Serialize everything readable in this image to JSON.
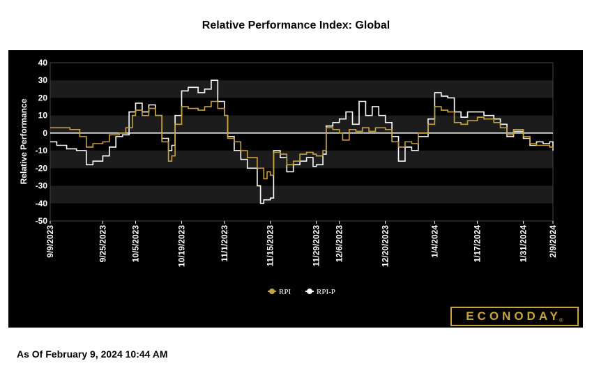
{
  "title": "Relative Performance Index: Global",
  "footer": {
    "as_of": "As Of February 9, 2024 10:44 AM"
  },
  "logo": {
    "text": "ECONODAY",
    "mark": "®"
  },
  "colors": {
    "background": "#000000",
    "band": "#1c1c1c",
    "rpi": "#c9a33d",
    "rpi_p": "#ffffff",
    "zero_line": "#ffffff"
  },
  "chart_data": {
    "type": "line",
    "title": "Relative Performance Index: Global",
    "xlabel": "",
    "ylabel": "Relative Performance",
    "ylim": [
      -50,
      40
    ],
    "yticks": [
      40,
      30,
      20,
      10,
      0,
      -10,
      -20,
      -30,
      -40,
      -50
    ],
    "xlim": [
      "2023-09-09",
      "2024-02-09"
    ],
    "xticks": [
      "9/9/2023",
      "9/25/2023",
      "10/5/2023",
      "10/19/2023",
      "11/1/2023",
      "11/15/2023",
      "11/29/2023",
      "12/6/2023",
      "12/20/2023",
      "1/4/2024",
      "1/17/2024",
      "1/31/2024",
      "2/9/2024"
    ],
    "xtick_dates": [
      "2023-09-09",
      "2023-09-25",
      "2023-10-05",
      "2023-10-19",
      "2023-11-01",
      "2023-11-15",
      "2023-11-29",
      "2023-12-06",
      "2023-12-20",
      "2024-01-04",
      "2024-01-17",
      "2024-01-31",
      "2024-02-09"
    ],
    "alternating_bands": true,
    "legend_position": "bottom-center",
    "series": [
      {
        "name": "RPI",
        "color": "#c9a33d",
        "points": [
          [
            "2023-09-09",
            3
          ],
          [
            "2023-09-12",
            3
          ],
          [
            "2023-09-15",
            2
          ],
          [
            "2023-09-18",
            -2
          ],
          [
            "2023-09-20",
            -8
          ],
          [
            "2023-09-22",
            -6
          ],
          [
            "2023-09-25",
            -5
          ],
          [
            "2023-09-27",
            -1
          ],
          [
            "2023-09-30",
            0
          ],
          [
            "2023-10-02",
            3
          ],
          [
            "2023-10-04",
            10
          ],
          [
            "2023-10-05",
            13
          ],
          [
            "2023-10-07",
            10
          ],
          [
            "2023-10-09",
            14
          ],
          [
            "2023-10-11",
            10
          ],
          [
            "2023-10-13",
            -5
          ],
          [
            "2023-10-15",
            -16
          ],
          [
            "2023-10-16",
            -13
          ],
          [
            "2023-10-17",
            5
          ],
          [
            "2023-10-19",
            15
          ],
          [
            "2023-10-21",
            14
          ],
          [
            "2023-10-24",
            13
          ],
          [
            "2023-10-26",
            15
          ],
          [
            "2023-10-28",
            18
          ],
          [
            "2023-10-30",
            14
          ],
          [
            "2023-11-01",
            10
          ],
          [
            "2023-11-02",
            -3
          ],
          [
            "2023-11-04",
            -5
          ],
          [
            "2023-11-06",
            -10
          ],
          [
            "2023-11-08",
            -14
          ],
          [
            "2023-11-11",
            -20
          ],
          [
            "2023-11-13",
            -26
          ],
          [
            "2023-11-14",
            -22
          ],
          [
            "2023-11-15",
            -24
          ],
          [
            "2023-11-16",
            -11
          ],
          [
            "2023-11-18",
            -12
          ],
          [
            "2023-11-20",
            -18
          ],
          [
            "2023-11-22",
            -16
          ],
          [
            "2023-11-24",
            -12
          ],
          [
            "2023-11-26",
            -11
          ],
          [
            "2023-11-28",
            -12
          ],
          [
            "2023-11-29",
            -13
          ],
          [
            "2023-12-01",
            -10
          ],
          [
            "2023-12-02",
            3
          ],
          [
            "2023-12-04",
            2
          ],
          [
            "2023-12-06",
            0
          ],
          [
            "2023-12-07",
            -4
          ],
          [
            "2023-12-09",
            2
          ],
          [
            "2023-12-11",
            1
          ],
          [
            "2023-12-13",
            3
          ],
          [
            "2023-12-15",
            1
          ],
          [
            "2023-12-17",
            3
          ],
          [
            "2023-12-20",
            2
          ],
          [
            "2023-12-22",
            -5
          ],
          [
            "2023-12-24",
            -8
          ],
          [
            "2023-12-26",
            -5
          ],
          [
            "2023-12-28",
            -6
          ],
          [
            "2023-12-30",
            0
          ],
          [
            "2024-01-02",
            5
          ],
          [
            "2024-01-04",
            15
          ],
          [
            "2024-01-06",
            13
          ],
          [
            "2024-01-08",
            12
          ],
          [
            "2024-01-10",
            6
          ],
          [
            "2024-01-12",
            5
          ],
          [
            "2024-01-14",
            7
          ],
          [
            "2024-01-17",
            9
          ],
          [
            "2024-01-19",
            8
          ],
          [
            "2024-01-22",
            6
          ],
          [
            "2024-01-24",
            3
          ],
          [
            "2024-01-26",
            -1
          ],
          [
            "2024-01-28",
            2
          ],
          [
            "2024-01-31",
            -2
          ],
          [
            "2024-02-02",
            -6
          ],
          [
            "2024-02-04",
            -7
          ],
          [
            "2024-02-06",
            -7
          ],
          [
            "2024-02-08",
            -8
          ],
          [
            "2024-02-09",
            -9
          ]
        ]
      },
      {
        "name": "RPI-P",
        "color": "#ffffff",
        "points": [
          [
            "2023-09-09",
            -5
          ],
          [
            "2023-09-11",
            -7
          ],
          [
            "2023-09-14",
            -9
          ],
          [
            "2023-09-17",
            -10
          ],
          [
            "2023-09-20",
            -18
          ],
          [
            "2023-09-22",
            -16
          ],
          [
            "2023-09-25",
            -13
          ],
          [
            "2023-09-27",
            -8
          ],
          [
            "2023-09-29",
            -2
          ],
          [
            "2023-10-01",
            -1
          ],
          [
            "2023-10-03",
            12
          ],
          [
            "2023-10-05",
            17
          ],
          [
            "2023-10-07",
            12
          ],
          [
            "2023-10-09",
            16
          ],
          [
            "2023-10-11",
            10
          ],
          [
            "2023-10-13",
            -3
          ],
          [
            "2023-10-15",
            -10
          ],
          [
            "2023-10-16",
            -7
          ],
          [
            "2023-10-17",
            10
          ],
          [
            "2023-10-19",
            24
          ],
          [
            "2023-10-21",
            26
          ],
          [
            "2023-10-24",
            23
          ],
          [
            "2023-10-26",
            25
          ],
          [
            "2023-10-28",
            30
          ],
          [
            "2023-10-30",
            18
          ],
          [
            "2023-11-01",
            10
          ],
          [
            "2023-11-02",
            -2
          ],
          [
            "2023-11-04",
            -10
          ],
          [
            "2023-11-06",
            -15
          ],
          [
            "2023-11-08",
            -20
          ],
          [
            "2023-11-11",
            -30
          ],
          [
            "2023-11-12",
            -40
          ],
          [
            "2023-11-13",
            -38
          ],
          [
            "2023-11-15",
            -37
          ],
          [
            "2023-11-16",
            -10
          ],
          [
            "2023-11-18",
            -14
          ],
          [
            "2023-11-20",
            -22
          ],
          [
            "2023-11-22",
            -18
          ],
          [
            "2023-11-24",
            -16
          ],
          [
            "2023-11-26",
            -14
          ],
          [
            "2023-11-28",
            -19
          ],
          [
            "2023-11-29",
            -18
          ],
          [
            "2023-12-01",
            -12
          ],
          [
            "2023-12-02",
            4
          ],
          [
            "2023-12-04",
            6
          ],
          [
            "2023-12-06",
            8
          ],
          [
            "2023-12-08",
            12
          ],
          [
            "2023-12-10",
            5
          ],
          [
            "2023-12-12",
            18
          ],
          [
            "2023-12-14",
            10
          ],
          [
            "2023-12-16",
            15
          ],
          [
            "2023-12-18",
            10
          ],
          [
            "2023-12-20",
            6
          ],
          [
            "2023-12-22",
            -2
          ],
          [
            "2023-12-24",
            -16
          ],
          [
            "2023-12-26",
            -8
          ],
          [
            "2023-12-28",
            -10
          ],
          [
            "2023-12-30",
            -2
          ],
          [
            "2024-01-02",
            8
          ],
          [
            "2024-01-04",
            23
          ],
          [
            "2024-01-06",
            21
          ],
          [
            "2024-01-08",
            20
          ],
          [
            "2024-01-10",
            12
          ],
          [
            "2024-01-12",
            9
          ],
          [
            "2024-01-14",
            12
          ],
          [
            "2024-01-17",
            12
          ],
          [
            "2024-01-19",
            10
          ],
          [
            "2024-01-22",
            8
          ],
          [
            "2024-01-24",
            5
          ],
          [
            "2024-01-26",
            -2
          ],
          [
            "2024-01-28",
            1
          ],
          [
            "2024-01-31",
            -3
          ],
          [
            "2024-02-02",
            -7
          ],
          [
            "2024-02-04",
            -5
          ],
          [
            "2024-02-06",
            -6
          ],
          [
            "2024-02-08",
            -5
          ],
          [
            "2024-02-09",
            -10
          ]
        ]
      }
    ]
  }
}
